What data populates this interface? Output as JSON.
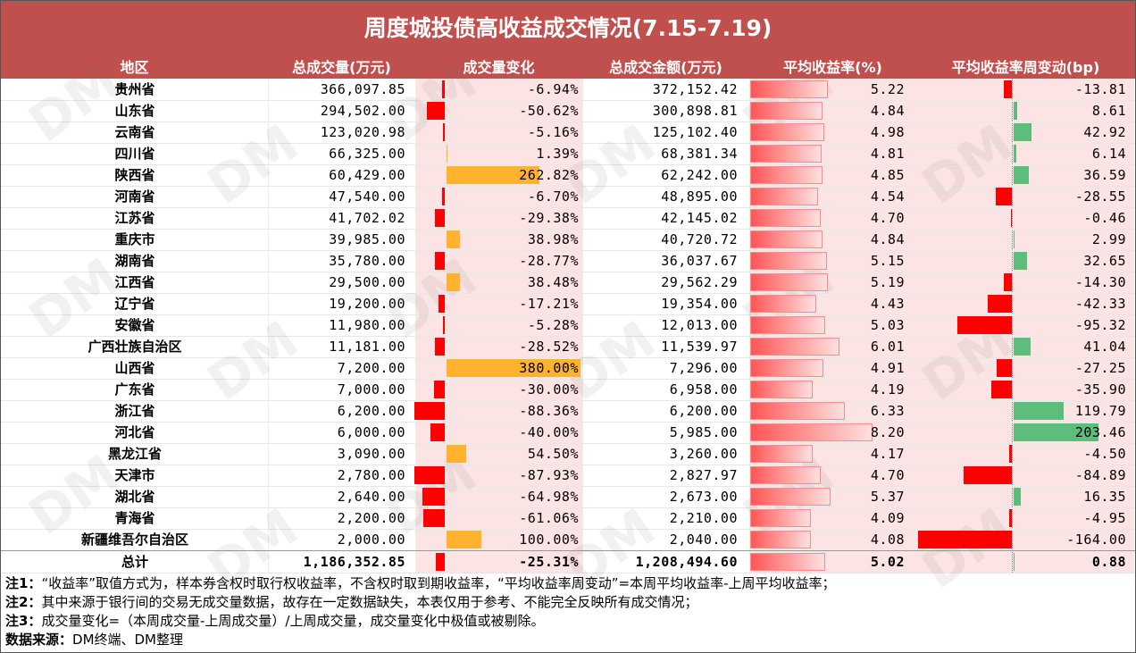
{
  "title": "周度城投债高收益成交情况(7.15-7.19)",
  "headers": [
    "地区",
    "总成交量(万元)",
    "成交量变化",
    "总成交金额(万元)",
    "平均收益率(%)",
    "平均收益率周变动(bp)"
  ],
  "rows": [
    {
      "region": "贵州省",
      "volume": "366,097.85",
      "chg": "-6.94%",
      "amount": "372,152.42",
      "yield": "5.22",
      "bp": "-13.81"
    },
    {
      "region": "山东省",
      "volume": "294,502.00",
      "chg": "-50.62%",
      "amount": "300,898.81",
      "yield": "4.84",
      "bp": "8.61"
    },
    {
      "region": "云南省",
      "volume": "123,020.98",
      "chg": "-5.16%",
      "amount": "125,102.40",
      "yield": "4.98",
      "bp": "42.92"
    },
    {
      "region": "四川省",
      "volume": "66,325.00",
      "chg": "1.39%",
      "amount": "68,381.34",
      "yield": "4.81",
      "bp": "6.14"
    },
    {
      "region": "陕西省",
      "volume": "60,429.00",
      "chg": "262.82%",
      "amount": "62,242.00",
      "yield": "4.85",
      "bp": "36.59"
    },
    {
      "region": "河南省",
      "volume": "47,540.00",
      "chg": "-6.70%",
      "amount": "48,895.00",
      "yield": "4.54",
      "bp": "-28.55"
    },
    {
      "region": "江苏省",
      "volume": "41,702.02",
      "chg": "-29.38%",
      "amount": "42,145.02",
      "yield": "4.70",
      "bp": "-0.46"
    },
    {
      "region": "重庆市",
      "volume": "39,985.00",
      "chg": "38.98%",
      "amount": "40,720.72",
      "yield": "4.84",
      "bp": "2.99"
    },
    {
      "region": "湖南省",
      "volume": "35,780.00",
      "chg": "-28.77%",
      "amount": "36,037.67",
      "yield": "5.15",
      "bp": "32.65"
    },
    {
      "region": "江西省",
      "volume": "29,500.00",
      "chg": "38.48%",
      "amount": "29,562.29",
      "yield": "5.19",
      "bp": "-14.30"
    },
    {
      "region": "辽宁省",
      "volume": "19,200.00",
      "chg": "-17.21%",
      "amount": "19,354.00",
      "yield": "4.43",
      "bp": "-42.33"
    },
    {
      "region": "安徽省",
      "volume": "11,980.00",
      "chg": "-5.28%",
      "amount": "12,013.00",
      "yield": "5.03",
      "bp": "-95.32"
    },
    {
      "region": "广西壮族自治区",
      "volume": "11,181.00",
      "chg": "-28.52%",
      "amount": "11,539.97",
      "yield": "6.01",
      "bp": "41.04"
    },
    {
      "region": "山西省",
      "volume": "7,200.00",
      "chg": "380.00%",
      "amount": "7,296.00",
      "yield": "4.91",
      "bp": "-27.25"
    },
    {
      "region": "广东省",
      "volume": "7,000.00",
      "chg": "-30.00%",
      "amount": "6,958.00",
      "yield": "4.19",
      "bp": "-35.90"
    },
    {
      "region": "浙江省",
      "volume": "6,200.00",
      "chg": "-88.36%",
      "amount": "6,200.00",
      "yield": "6.33",
      "bp": "119.79"
    },
    {
      "region": "河北省",
      "volume": "6,000.00",
      "chg": "-40.00%",
      "amount": "5,985.00",
      "yield": "8.20",
      "bp": "203.46"
    },
    {
      "region": "黑龙江省",
      "volume": "3,090.00",
      "chg": "54.50%",
      "amount": "3,260.00",
      "yield": "4.17",
      "bp": "-4.50"
    },
    {
      "region": "天津市",
      "volume": "2,780.00",
      "chg": "-87.93%",
      "amount": "2,827.97",
      "yield": "4.70",
      "bp": "-84.89"
    },
    {
      "region": "湖北省",
      "volume": "2,640.00",
      "chg": "-64.98%",
      "amount": "2,673.00",
      "yield": "5.37",
      "bp": "16.35"
    },
    {
      "region": "青海省",
      "volume": "2,200.00",
      "chg": "-61.06%",
      "amount": "2,210.00",
      "yield": "4.09",
      "bp": "-4.95"
    },
    {
      "region": "新疆维吾尔自治区",
      "volume": "2,000.00",
      "chg": "100.00%",
      "amount": "2,040.00",
      "yield": "4.08",
      "bp": "-164.00"
    }
  ],
  "total": {
    "region": "总计",
    "volume": "1,186,352.85",
    "chg": "-25.31%",
    "amount": "1,208,494.60",
    "yield": "5.02",
    "bp": "0.88"
  },
  "notes": [
    {
      "label": "注1：",
      "text": "“收益率”取值方式为，样本券含权时取行权收益率，不含权时取到期收益率，“平均收益率周变动”=本周平均收益率-上周平均收益率；"
    },
    {
      "label": "注2：",
      "text": "其中来源于银行间的交易无成交量数据，故存在一定数据缺失，本表仅用于参考、不能完全反映所有成交情况；"
    },
    {
      "label": "注3：",
      "text": "成交量变化=（本周成交量-上周成交量）/上周成交量，成交量变化中极值或被剔除。"
    },
    {
      "label": "数据来源：",
      "text": "DM终端、DM整理"
    }
  ],
  "watermark": "DM",
  "colors": {
    "header_bg": "#c0504d",
    "neg_bar": "#ff0000",
    "pos_chg_bar": "#ffb22e",
    "pos_bp_bar": "#5cbe7a",
    "bar_bg": "#fde4e4"
  }
}
